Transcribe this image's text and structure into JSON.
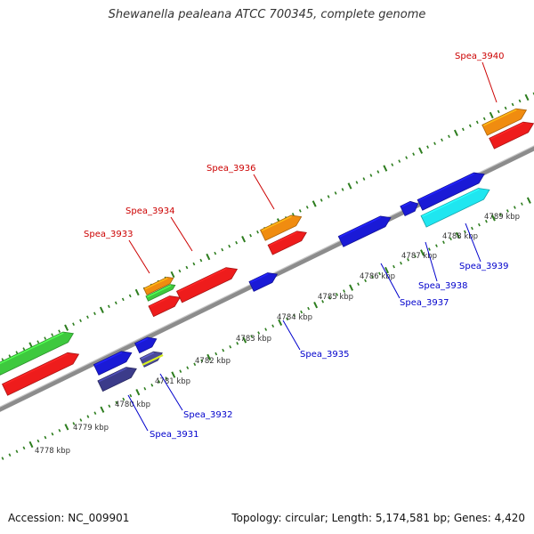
{
  "title": "Shewanella pealeana ATCC 700345, complete genome",
  "footer": {
    "accession": "Accession: NC_009901",
    "summary": "Topology: circular; Length: 5,174,581 bp; Genes: 4,420"
  },
  "colors": {
    "backbone": "#8c8c8c",
    "tick": "#2d7d1e",
    "label_forward": "#cc0000",
    "label_reverse": "#0000cc",
    "scale_text": "#333333"
  },
  "scale_labels": [
    "4778 kbp",
    "4779 kbp",
    "4780 kbp",
    "4781 kbp",
    "4782 kbp",
    "4783 kbp",
    "4784 kbp",
    "4785 kbp",
    "4786 kbp",
    "4787 kbp",
    "4788 kbp",
    "4789 kbp"
  ],
  "gene_labels": [
    {
      "text": "Spea_3933",
      "strand": "forward"
    },
    {
      "text": "Spea_3934",
      "strand": "forward"
    },
    {
      "text": "Spea_3936",
      "strand": "forward"
    },
    {
      "text": "Spea_3940",
      "strand": "forward"
    },
    {
      "text": "Spea_3931",
      "strand": "reverse"
    },
    {
      "text": "Spea_3932",
      "strand": "reverse"
    },
    {
      "text": "Spea_3935",
      "strand": "reverse"
    },
    {
      "text": "Spea_3937",
      "strand": "reverse"
    },
    {
      "text": "Spea_3938",
      "strand": "reverse"
    },
    {
      "text": "Spea_3939",
      "strand": "reverse"
    }
  ],
  "features": [
    {
      "id": "f-left-green",
      "color": "#3ec93e"
    },
    {
      "id": "f-left-red",
      "color": "#ee1c1c"
    },
    {
      "id": "f-3933-orange",
      "color": "#f08c10"
    },
    {
      "id": "f-3933-green",
      "color": "#3ec93e"
    },
    {
      "id": "f-3933-red",
      "color": "#ee1c1c"
    },
    {
      "id": "f-3934-red",
      "color": "#ee1c1c"
    },
    {
      "id": "f-3936-orange",
      "color": "#f08c10"
    },
    {
      "id": "f-3936-red",
      "color": "#ee1c1c"
    },
    {
      "id": "f-3940-orange",
      "color": "#f08c10"
    },
    {
      "id": "f-3940-red",
      "color": "#ee1c1c"
    },
    {
      "id": "f-3931-blue",
      "color": "#1a1ad6"
    },
    {
      "id": "f-3931-navy",
      "color": "#3b3b8a"
    },
    {
      "id": "f-3932-blue",
      "color": "#1a1ad6"
    },
    {
      "id": "f-3932-stack",
      "color": "#4a4a9a"
    },
    {
      "id": "f-3935-blue",
      "color": "#1a1ad6"
    },
    {
      "id": "f-3937-blue",
      "color": "#1a1ad6"
    },
    {
      "id": "f-3938-blue",
      "color": "#1a1ad6"
    },
    {
      "id": "f-3939-blue",
      "color": "#1a1ad6"
    },
    {
      "id": "f-3939-cyan",
      "color": "#1fe6f0"
    }
  ]
}
